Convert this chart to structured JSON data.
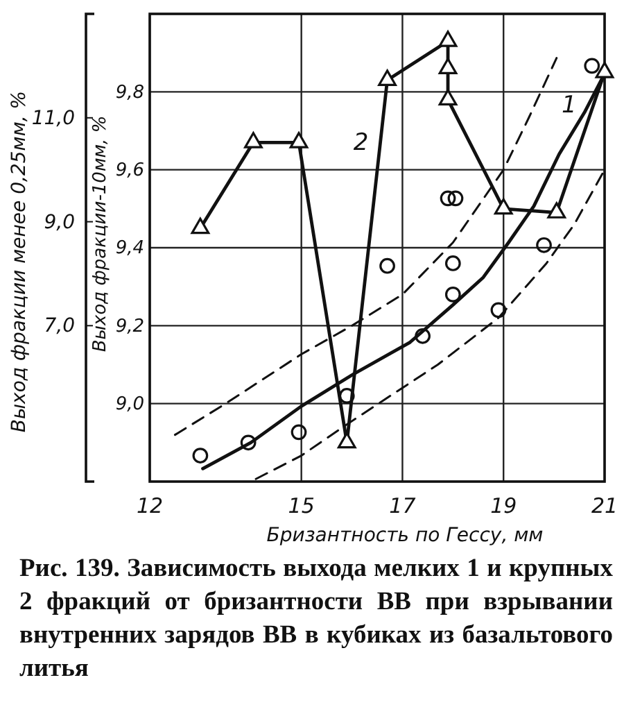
{
  "chart_data": {
    "type": "line",
    "xlabel": "Бризантность по Гессу, мм",
    "ylabel": "Выход фракции-10мм, %",
    "y2label": "Выход фракции менее 0,25мм, %",
    "xlim": [
      12,
      21
    ],
    "xticks": [
      12,
      15,
      17,
      19,
      21
    ],
    "ylim": [
      8.8,
      10.0
    ],
    "yticks": [
      {
        "value": 9.0,
        "label": "9,0"
      },
      {
        "value": 9.2,
        "label": "9,2"
      },
      {
        "value": 9.4,
        "label": "9,4"
      },
      {
        "value": 9.6,
        "label": "9,6"
      },
      {
        "value": 9.8,
        "label": "9,8"
      }
    ],
    "y2lim": [
      4,
      13
    ],
    "y2ticks": [
      {
        "value": 7,
        "label": "7,0"
      },
      {
        "value": 9,
        "label": "9,0"
      },
      {
        "value": 11,
        "label": "11,0"
      }
    ],
    "grid": true,
    "legend": false,
    "series": [
      {
        "name": "1",
        "axis": "y2",
        "color": "#111111",
        "marker": "none",
        "line_style": "solid",
        "x": [
          13.05,
          14,
          15,
          16,
          17.15,
          18,
          18.6,
          19.1,
          19.6,
          20.1,
          20.6,
          21
        ],
        "values": [
          4.25,
          4.75,
          5.45,
          6.05,
          6.68,
          7.4,
          7.93,
          8.6,
          9.3,
          10.3,
          11.1,
          11.85
        ]
      },
      {
        "axis": "y2",
        "color": "#111111",
        "marker": "none",
        "line_style": "dashed",
        "x": [
          12.5,
          13.5,
          15,
          16,
          17,
          18,
          19,
          19.5,
          20.05
        ],
        "values": [
          4.9,
          5.5,
          6.45,
          7.0,
          7.6,
          8.6,
          10.0,
          11.0,
          12.15
        ]
      },
      {
        "axis": "y2",
        "color": "#111111",
        "marker": "none",
        "line_style": "dashed",
        "x": [
          14.1,
          15,
          15.9,
          17.7,
          18.9,
          19.85,
          20.4,
          21
        ],
        "values": [
          4.05,
          4.5,
          5.1,
          6.25,
          7.15,
          8.2,
          8.95,
          10.0
        ]
      },
      {
        "type": "scatter",
        "axis": "y2",
        "color": "#111111",
        "marker": "circle",
        "x": [
          13.0,
          13.95,
          14.95,
          15.9,
          16.7,
          17.4,
          17.9,
          18.05,
          18.0,
          18.0,
          18.9,
          19.8,
          20.75
        ],
        "values": [
          4.5,
          4.75,
          4.95,
          5.65,
          8.15,
          6.8,
          9.45,
          9.45,
          8.2,
          7.6,
          7.3,
          8.55,
          12.0
        ]
      },
      {
        "name": "2",
        "axis": "y",
        "color": "#111111",
        "marker": "triangle",
        "line_style": "solid",
        "x": [
          13.0,
          14.05,
          14.95,
          15.9,
          16.7,
          17.9,
          17.9,
          17.9,
          19.0,
          20.05,
          21.0
        ],
        "values": [
          9.45,
          9.67,
          9.67,
          8.9,
          9.83,
          9.93,
          9.86,
          9.78,
          9.5,
          9.49,
          9.85
        ]
      }
    ],
    "annotations": [
      "Рис. 139. Зависимость выхода мелких 1 и крупных 2 фракций от бризантности ВВ при взрывании внутренних зарядов ВВ в кубиках из базальтового литья"
    ]
  }
}
